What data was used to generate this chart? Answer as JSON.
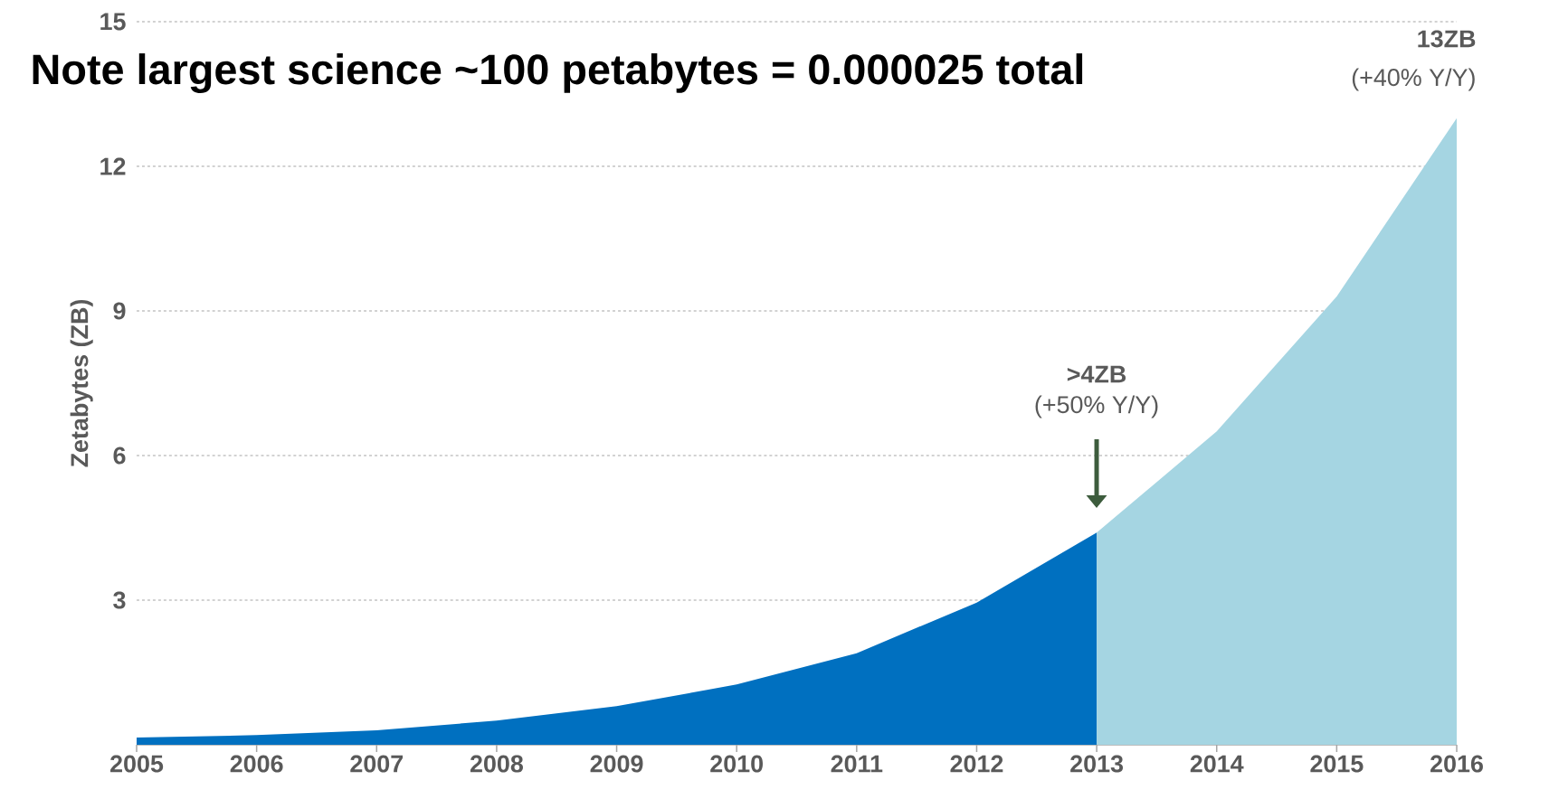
{
  "chart_data": {
    "type": "area",
    "ylabel": "Zetabytes (ZB)",
    "series": [
      {
        "color": "#0070c0",
        "x": [
          2005,
          2006,
          2007,
          2008,
          2009,
          2010,
          2011,
          2012,
          2013
        ],
        "values": [
          0.15,
          0.2,
          0.3,
          0.5,
          0.8,
          1.25,
          1.9,
          2.95,
          4.4
        ]
      },
      {
        "color": "#a5d5e2",
        "x": [
          2013,
          2014,
          2015,
          2016
        ],
        "values": [
          4.4,
          6.5,
          9.3,
          13.0
        ]
      }
    ],
    "xlim": [
      2005,
      2016
    ],
    "xticks": [
      2005,
      2006,
      2007,
      2008,
      2009,
      2010,
      2011,
      2012,
      2013,
      2014,
      2015,
      2016
    ],
    "ylim": [
      0,
      15
    ],
    "yticks": [
      3,
      6,
      9,
      12,
      15
    ],
    "grid": "y",
    "annotations": [
      ">4ZB",
      "(+50% Y/Y)",
      {
        "text": "13ZB",
        "x": 2016,
        "y": 13.0
      },
      {
        "text": "(+40% Y/Y)",
        "x": 2016,
        "y": 13.0
      },
      "Note largest science ~100 petabytes = 0.000025 total"
    ]
  }
}
